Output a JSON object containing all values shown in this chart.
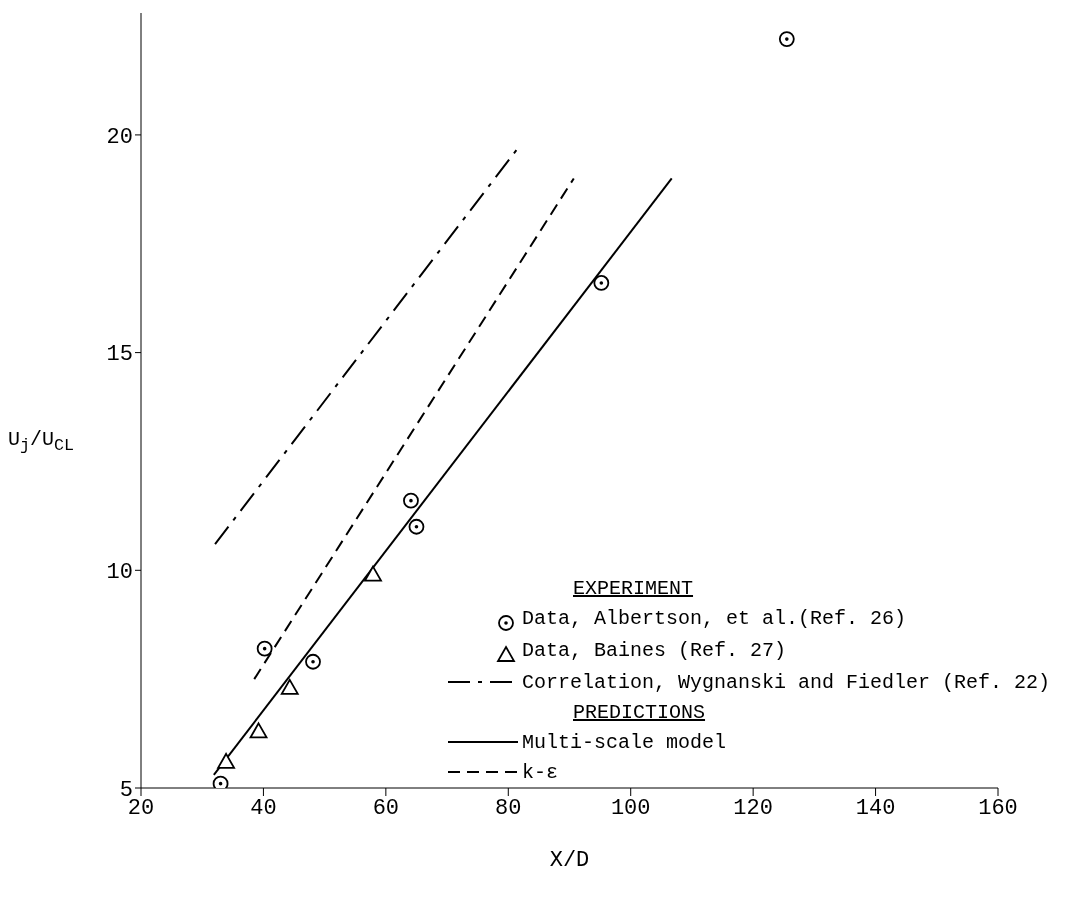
{
  "chart_data": {
    "type": "scatter",
    "xlabel": "X/D",
    "ylabel": "U$_{j}$/U$_{CL}$",
    "xlim": [
      20,
      160
    ],
    "xticks": [
      20,
      40,
      60,
      80,
      100,
      120,
      140,
      160
    ],
    "ylim": [
      5,
      22.8
    ],
    "yticks": [
      5,
      10,
      15,
      20
    ],
    "grid": false,
    "legend": "bottom right",
    "annotations": [
      "EXPERIMENT",
      "PREDICTIONS"
    ],
    "series": [
      {
        "name": "Data, Albertson, et al.(Ref. 26)",
        "marker": "circle",
        "color": "#000000",
        "x": [
          33.0,
          40.2,
          48.1,
          64.1,
          65.0,
          95.2,
          125.5
        ],
        "values": [
          5.1,
          8.2,
          7.9,
          11.6,
          11.0,
          16.6,
          22.2
        ]
      },
      {
        "name": "Data, Baines (Ref. 27)",
        "marker": "triangle",
        "color": "#000000",
        "x": [
          33.9,
          39.2,
          44.3,
          57.9
        ],
        "values": [
          5.6,
          6.3,
          7.3,
          9.9
        ]
      },
      {
        "name": "Correlation, Wygnanski and Fiedler (Ref. 22)",
        "type": "line",
        "line_style": "dashdot",
        "color": "#000000",
        "x": [
          32.1,
          81.6
        ],
        "values": [
          10.6,
          19.7
        ]
      },
      {
        "name": "Multi-scale model",
        "type": "line",
        "line_style": "solid",
        "color": "#000000",
        "x": [
          31.9,
          106.7
        ],
        "values": [
          5.3,
          19.0
        ]
      },
      {
        "name": "k-ε",
        "type": "line",
        "line_style": "dashed",
        "color": "#000000",
        "x": [
          38.5,
          90.7
        ],
        "values": [
          7.5,
          19.0
        ]
      }
    ]
  }
}
